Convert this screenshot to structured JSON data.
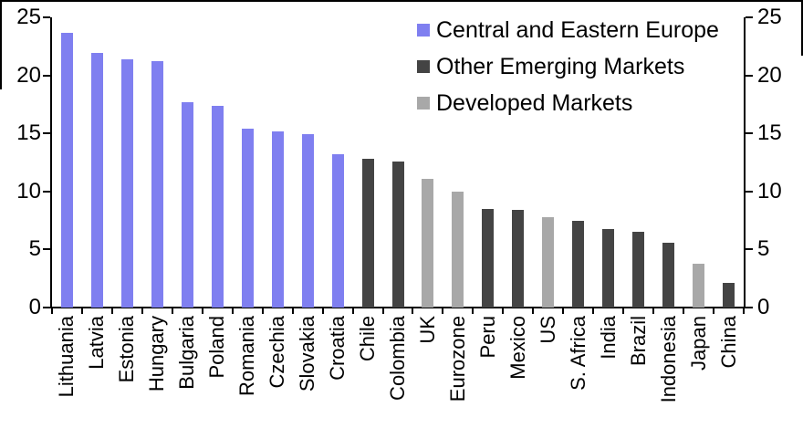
{
  "chart_data": {
    "type": "bar",
    "title": "",
    "categories": [
      "Lithuania",
      "Latvia",
      "Estonia",
      "Hungary",
      "Bulgaria",
      "Poland",
      "Romania",
      "Czechia",
      "Slovakia",
      "Croatia",
      "Chile",
      "Colombia",
      "UK",
      "Eurozone",
      "Peru",
      "Mexico",
      "US",
      "S. Africa",
      "India",
      "Brazil",
      "Indonesia",
      "Japan",
      "China"
    ],
    "values": [
      23.7,
      21.9,
      21.4,
      21.2,
      17.7,
      17.4,
      15.4,
      15.2,
      14.9,
      13.2,
      12.8,
      12.6,
      11.1,
      10.0,
      8.5,
      8.4,
      7.8,
      7.5,
      6.8,
      6.5,
      5.6,
      3.8,
      2.1
    ],
    "groups": [
      "cee",
      "cee",
      "cee",
      "cee",
      "cee",
      "cee",
      "cee",
      "cee",
      "cee",
      "cee",
      "oem",
      "oem",
      "dm",
      "dm",
      "oem",
      "oem",
      "dm",
      "oem",
      "oem",
      "oem",
      "oem",
      "dm",
      "oem"
    ],
    "legend": [
      {
        "key": "cee",
        "label": "Central and Eastern Europe",
        "color": "#7F7FF0"
      },
      {
        "key": "oem",
        "label": "Other Emerging Markets",
        "color": "#444444"
      },
      {
        "key": "dm",
        "label": "Developed Markets",
        "color": "#A8A8A8"
      }
    ],
    "ylim": [
      0,
      25
    ],
    "yticks": [
      0,
      5,
      10,
      15,
      20,
      25
    ],
    "dual_axis": true,
    "grid": false,
    "legend_position": "top-right",
    "axis_color": "#000000",
    "background_color": "#FFFFFF"
  }
}
